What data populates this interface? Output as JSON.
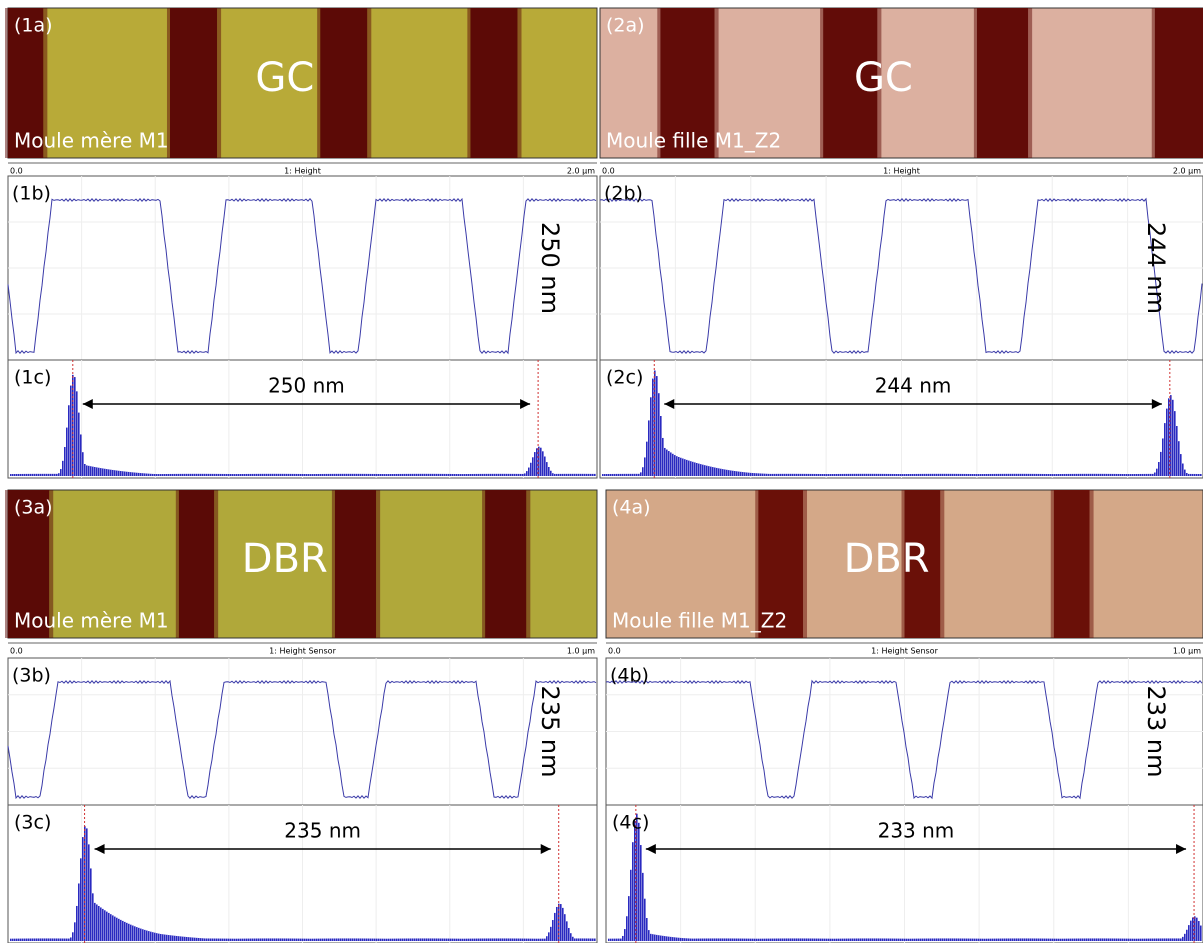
{
  "panels": [
    {
      "image": {
        "label": "(1a)",
        "sample": "GC",
        "mold": "Moule mère M1"
      },
      "scale": {
        "start": "0.0",
        "title": "1: Height",
        "end": "2.0 µm"
      },
      "profile": {
        "label": "(1b)",
        "depth": "250 nm"
      },
      "histogram": {
        "label": "(1c)",
        "distance": "250 nm"
      }
    },
    {
      "image": {
        "label": "(2a)",
        "sample": "GC",
        "mold": "Moule fille M1_Z2"
      },
      "scale": {
        "start": "0.0",
        "title": "1: Height",
        "end": "2.0 µm"
      },
      "profile": {
        "label": "(2b)",
        "depth": "244 nm"
      },
      "histogram": {
        "label": "(2c)",
        "distance": "244 nm"
      }
    },
    {
      "image": {
        "label": "(3a)",
        "sample": "DBR",
        "mold": "Moule mère M1"
      },
      "scale": {
        "start": "0.0",
        "title": "1: Height Sensor",
        "end": "1.0 µm"
      },
      "profile": {
        "label": "(3b)",
        "depth": "235 nm"
      },
      "histogram": {
        "label": "(3c)",
        "distance": "235 nm"
      }
    },
    {
      "image": {
        "label": "(4a)",
        "sample": "DBR",
        "mold": "Moule fille M1_Z2"
      },
      "scale": {
        "start": "0.0",
        "title": "1: Height Sensor",
        "end": "1.0 µm"
      },
      "profile": {
        "label": "(4b)",
        "depth": "233 nm"
      },
      "histogram": {
        "label": "(4c)",
        "distance": "233 nm"
      }
    }
  ]
}
